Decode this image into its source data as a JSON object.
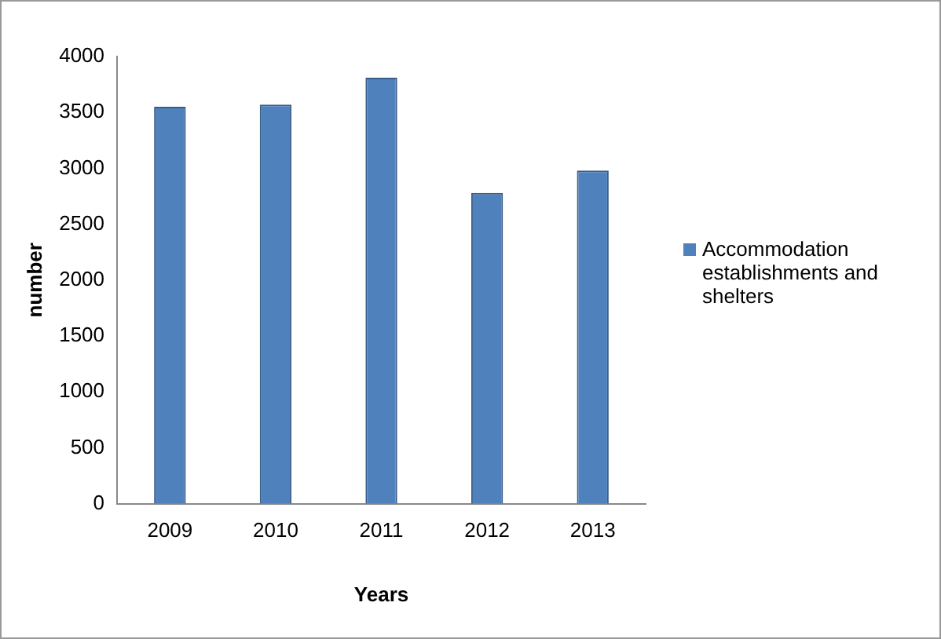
{
  "chart_data": {
    "type": "bar",
    "xlabel": "Years",
    "ylabel": "number",
    "categories": [
      "2009",
      "2010",
      "2011",
      "2012",
      "2013"
    ],
    "series": [
      {
        "name": "Accommodation establishments and shelters",
        "color": "#4f81bd",
        "values": [
          3550,
          3570,
          3810,
          2780,
          2980
        ]
      }
    ],
    "ylim": [
      0,
      4000
    ],
    "yticks": [
      0,
      500,
      1000,
      1500,
      2000,
      2500,
      3000,
      3500,
      4000
    ],
    "grid": false,
    "legend": "right"
  }
}
